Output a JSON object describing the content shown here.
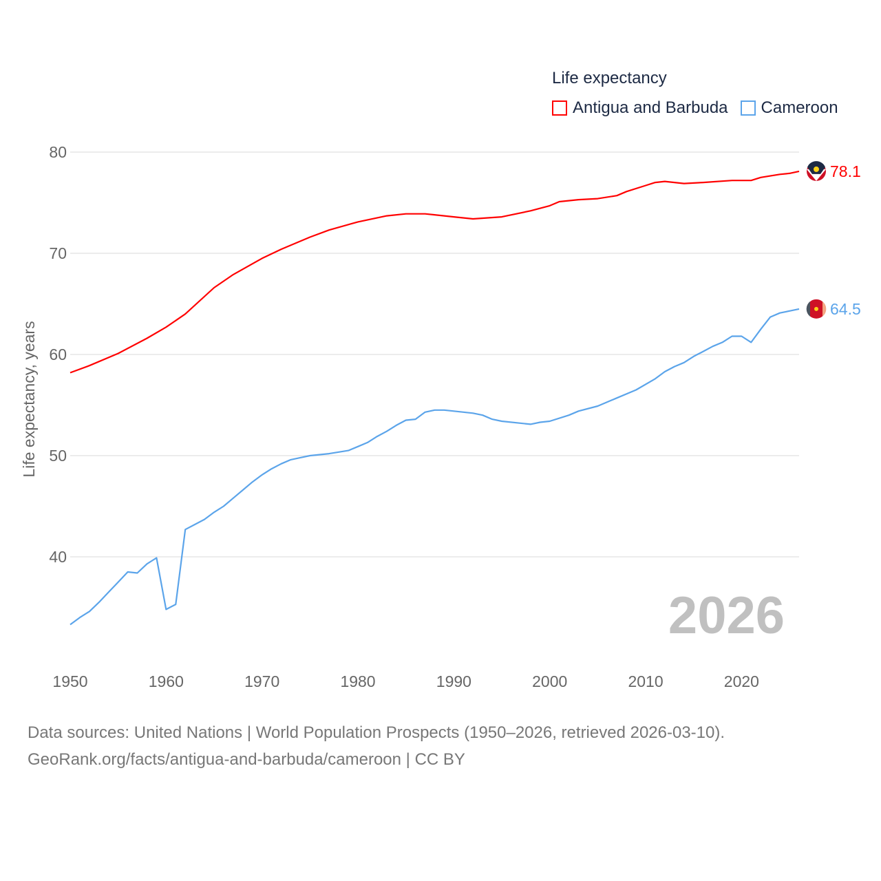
{
  "chart_data": {
    "type": "line",
    "title": "Life expectancy",
    "xlabel": "",
    "ylabel": "Life expectancy, years",
    "xlim": [
      1950,
      2026
    ],
    "ylim": [
      33,
      80
    ],
    "xticks": [
      "1950",
      "1960",
      "1970",
      "1980",
      "1990",
      "2000",
      "2010",
      "2020"
    ],
    "yticks": [
      "40",
      "50",
      "60",
      "70",
      "80"
    ],
    "grid": true,
    "legend_position": "top-right",
    "year_watermark": "2026",
    "series": [
      {
        "name": "Antigua and Barbuda",
        "color": "#ff0000",
        "end_label": "78.1",
        "x": [
          1950,
          1952,
          1955,
          1958,
          1960,
          1962,
          1965,
          1967,
          1970,
          1972,
          1975,
          1977,
          1980,
          1983,
          1985,
          1987,
          1988,
          1990,
          1992,
          1995,
          1998,
          2000,
          2001,
          2003,
          2005,
          2007,
          2008,
          2010,
          2011,
          2012,
          2014,
          2016,
          2019,
          2021,
          2022,
          2024,
          2025,
          2026
        ],
        "y": [
          58.2,
          58.9,
          60.1,
          61.6,
          62.7,
          64.0,
          66.6,
          67.9,
          69.5,
          70.4,
          71.6,
          72.3,
          73.1,
          73.7,
          73.9,
          73.9,
          73.8,
          73.6,
          73.4,
          73.6,
          74.2,
          74.7,
          75.1,
          75.3,
          75.4,
          75.7,
          76.1,
          76.7,
          77.0,
          77.1,
          76.9,
          77.0,
          77.2,
          77.2,
          77.5,
          77.8,
          77.9,
          78.1
        ]
      },
      {
        "name": "Cameroon",
        "color": "#5ba4ea",
        "end_label": "64.5",
        "x": [
          1950,
          1951,
          1952,
          1953,
          1954,
          1955,
          1956,
          1957,
          1958,
          1959,
          1960,
          1961,
          1962,
          1963,
          1964,
          1965,
          1966,
          1967,
          1968,
          1969,
          1970,
          1971,
          1972,
          1973,
          1974,
          1975,
          1977,
          1979,
          1980,
          1981,
          1982,
          1983,
          1984,
          1985,
          1986,
          1987,
          1988,
          1989,
          1990,
          1992,
          1993,
          1994,
          1995,
          1998,
          1999,
          2000,
          2002,
          2003,
          2005,
          2007,
          2009,
          2011,
          2012,
          2013,
          2014,
          2015,
          2016,
          2017,
          2018,
          2019,
          2020,
          2021,
          2022,
          2023,
          2024,
          2025,
          2026
        ],
        "y": [
          33.3,
          34.0,
          34.6,
          35.5,
          36.5,
          37.5,
          38.5,
          38.4,
          39.3,
          39.9,
          34.8,
          35.3,
          42.7,
          43.2,
          43.7,
          44.4,
          45.0,
          45.8,
          46.6,
          47.4,
          48.1,
          48.7,
          49.2,
          49.6,
          49.8,
          50.0,
          50.2,
          50.5,
          50.9,
          51.3,
          51.9,
          52.4,
          53.0,
          53.5,
          53.6,
          54.3,
          54.5,
          54.5,
          54.4,
          54.2,
          54.0,
          53.6,
          53.4,
          53.1,
          53.3,
          53.4,
          54.0,
          54.4,
          54.9,
          55.7,
          56.5,
          57.6,
          58.3,
          58.8,
          59.2,
          59.8,
          60.3,
          60.8,
          61.2,
          61.8,
          61.8,
          61.2,
          62.5,
          63.7,
          64.1,
          64.3,
          64.5
        ]
      }
    ]
  },
  "legend": {
    "title": "Life expectancy",
    "items": [
      "Antigua and Barbuda",
      "Cameroon"
    ]
  },
  "source": {
    "line1": "Data sources: United Nations | World Population Prospects (1950–2026, retrieved 2026-03-10).",
    "line2": "GeoRank.org/facts/antigua-and-barbuda/cameroon | CC BY"
  }
}
